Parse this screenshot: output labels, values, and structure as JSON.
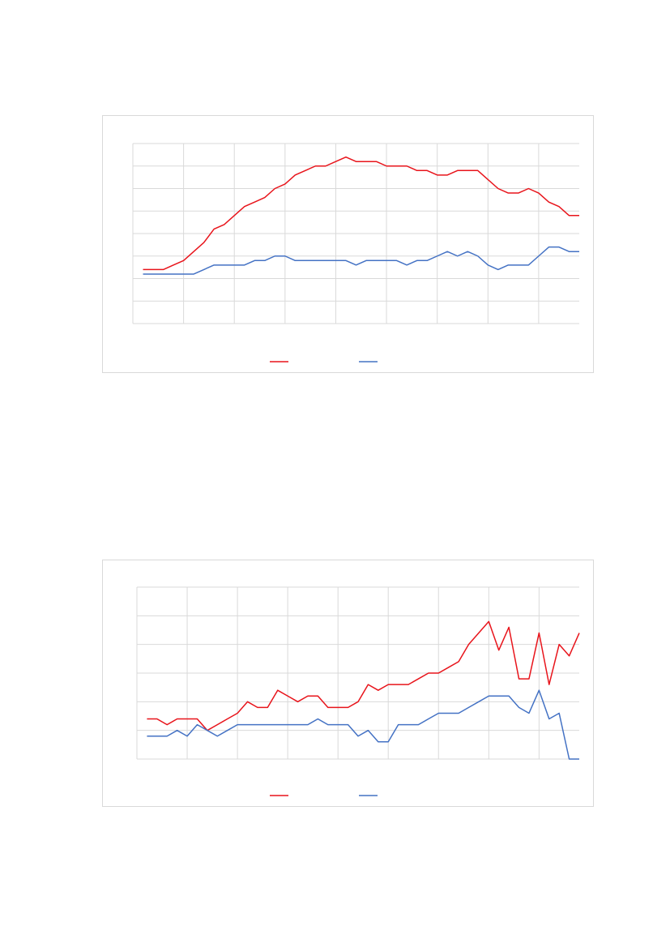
{
  "chart_data": [
    {
      "type": "line",
      "x": [
        1,
        2,
        3,
        4,
        5,
        6,
        7,
        8,
        9,
        10,
        11,
        12,
        13,
        14,
        15,
        16,
        17,
        18,
        19,
        20,
        21,
        22,
        23,
        24,
        25,
        26,
        27,
        28,
        29,
        30,
        31,
        32,
        33,
        34,
        35,
        36,
        37,
        38,
        39,
        40,
        41,
        42,
        43,
        44
      ],
      "xlim": [
        0,
        44
      ],
      "xticks": [
        0,
        5,
        10,
        15,
        20,
        25,
        30,
        35,
        40
      ],
      "ylim": [
        0,
        8
      ],
      "yticks": [
        0,
        1,
        2,
        3,
        4,
        5,
        6,
        7,
        8
      ],
      "grid": true,
      "series": [
        {
          "color": "#e8141b",
          "values": [
            2.4,
            2.4,
            2.4,
            2.6,
            2.8,
            3.2,
            3.6,
            4.2,
            4.4,
            4.8,
            5.2,
            5.4,
            5.6,
            6.0,
            6.2,
            6.6,
            6.8,
            7.0,
            7.0,
            7.2,
            7.4,
            7.2,
            7.2,
            7.2,
            7.0,
            7.0,
            7.0,
            6.8,
            6.8,
            6.6,
            6.6,
            6.8,
            6.8,
            6.8,
            6.4,
            6.0,
            5.8,
            5.8,
            6.0,
            5.8,
            5.4,
            5.2,
            4.8,
            4.8
          ]
        },
        {
          "color": "#4472c4",
          "values": [
            2.2,
            2.2,
            2.2,
            2.2,
            2.2,
            2.2,
            2.4,
            2.6,
            2.6,
            2.6,
            2.6,
            2.8,
            2.8,
            3.0,
            3.0,
            2.8,
            2.8,
            2.8,
            2.8,
            2.8,
            2.8,
            2.6,
            2.8,
            2.8,
            2.8,
            2.8,
            2.6,
            2.8,
            2.8,
            3.0,
            3.2,
            3.0,
            3.2,
            3.0,
            2.6,
            2.4,
            2.6,
            2.6,
            2.6,
            3.0,
            3.4,
            3.4,
            3.2,
            3.2
          ]
        }
      ]
    },
    {
      "type": "line",
      "x": [
        1,
        2,
        3,
        4,
        5,
        6,
        7,
        8,
        9,
        10,
        11,
        12,
        13,
        14,
        15,
        16,
        17,
        18,
        19,
        20,
        21,
        22,
        23,
        24,
        25,
        26,
        27,
        28,
        29,
        30,
        31,
        32,
        33,
        34,
        35,
        36,
        37,
        38,
        39,
        40,
        41,
        42,
        43,
        44
      ],
      "xlim": [
        0,
        44
      ],
      "xticks": [
        0,
        5,
        10,
        15,
        20,
        25,
        30,
        35,
        40
      ],
      "ylim": [
        0,
        6
      ],
      "yticks": [
        0,
        1,
        2,
        3,
        4,
        5,
        6
      ],
      "grid": true,
      "series": [
        {
          "color": "#e8141b",
          "values": [
            1.4,
            1.4,
            1.2,
            1.4,
            1.4,
            1.4,
            1.0,
            1.2,
            1.4,
            1.6,
            2.0,
            1.8,
            1.8,
            2.4,
            2.2,
            2.0,
            2.2,
            2.2,
            1.8,
            1.8,
            1.8,
            2.0,
            2.6,
            2.4,
            2.6,
            2.6,
            2.6,
            2.8,
            3.0,
            3.0,
            3.2,
            3.4,
            4.0,
            4.4,
            4.8,
            3.8,
            4.6,
            2.8,
            2.8,
            4.4,
            2.6,
            4.0,
            3.6,
            4.4
          ]
        },
        {
          "color": "#4472c4",
          "values": [
            0.8,
            0.8,
            0.8,
            1.0,
            0.8,
            1.2,
            1.0,
            0.8,
            1.0,
            1.2,
            1.2,
            1.2,
            1.2,
            1.2,
            1.2,
            1.2,
            1.2,
            1.4,
            1.2,
            1.2,
            1.2,
            0.8,
            1.0,
            0.6,
            0.6,
            1.2,
            1.2,
            1.2,
            1.4,
            1.6,
            1.6,
            1.6,
            1.8,
            2.0,
            2.2,
            2.2,
            2.2,
            1.8,
            1.6,
            2.4,
            1.4,
            1.6,
            0,
            0
          ]
        }
      ]
    }
  ]
}
